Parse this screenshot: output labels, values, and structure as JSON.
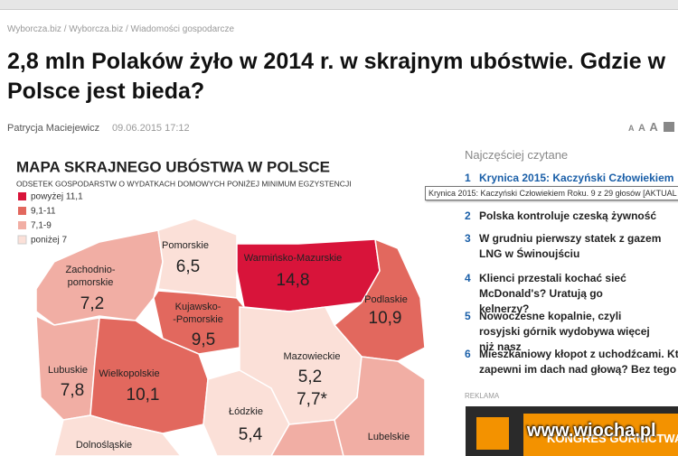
{
  "breadcrumb": "Wyborcza.biz / Wyborcza.biz / Wiadomości gospodarcze",
  "title": "2,8 mln Polaków żyło w 2014 r. w skrajnym ubóstwie. Gdzie w Polsce jest bieda?",
  "author": "Patrycja Maciejewicz",
  "date": "09.06.2015 17:12",
  "font_controls": [
    "A",
    "A",
    "A"
  ],
  "map": {
    "title": "MAPA SKRAJNEGO UBÓSTWA W POLSCE",
    "subtitle": "ODSETEK GOSPODARSTW O WYDATKACH DOMOWYCH PONIŻEJ MINIMUM EGZYSTENCJI",
    "legend": [
      "powyżej 11,1",
      "9,1-11",
      "7,1-9",
      "poniżej 7"
    ],
    "regions": [
      {
        "name": [
          "Pomorskie"
        ],
        "values": [
          "6,5"
        ]
      },
      {
        "name": [
          "Warmińsko-Mazurskie"
        ],
        "values": [
          "14,8"
        ]
      },
      {
        "name": [
          "Zachodnio-",
          "pomorskie"
        ],
        "values": [
          "7,2"
        ]
      },
      {
        "name": [
          "Podlaskie"
        ],
        "values": [
          "10,9"
        ]
      },
      {
        "name": [
          "Kujawsko-",
          "-Pomorskie"
        ],
        "values": [
          "9,5"
        ]
      },
      {
        "name": [
          "Mazowieckie"
        ],
        "values": [
          "5,2",
          "7,7*"
        ]
      },
      {
        "name": [
          "Lubuskie"
        ],
        "values": [
          "7,8"
        ]
      },
      {
        "name": [
          "Wielkopolskie"
        ],
        "values": [
          "10,1"
        ]
      },
      {
        "name": [
          "Łódzkie"
        ],
        "values": [
          "5,4"
        ]
      },
      {
        "name": [
          "Lubelskie"
        ],
        "values": []
      },
      {
        "name": [
          "Dolnośląskie"
        ],
        "values": []
      }
    ]
  },
  "sidebar": {
    "heading": "Najczęściej czytane",
    "items": [
      {
        "number": "1",
        "text": "Krynica 2015: Kaczyński Człowiekiem"
      },
      {
        "number": "2",
        "text": "Polska kontroluje czeską żywność"
      },
      {
        "number": "3",
        "text": "W grudniu pierwszy statek z gazem LNG w Świnoujściu"
      },
      {
        "number": "4",
        "text": "Klienci przestali kochać sieć McDonald's? Uratują go kelnerzy?"
      },
      {
        "number": "5",
        "text": "Nowoczesne kopalnie, czyli rosyjski górnik wydobywa więcej niż nasz"
      },
      {
        "number": "6",
        "text": "Mieszkaniowy kłopot z uchodźcami. Kto zapewni im dach nad głową? Bez tego nie"
      }
    ],
    "tooltip": "Krynica 2015: Kaczyński Człowiekiem Roku. 9 z 29 głosów [AKTUAL",
    "ad_label": "REKLAMA",
    "ad_text": "KONGRES GÓRNICTWA"
  },
  "watermark": "www.wiocha.pl"
}
